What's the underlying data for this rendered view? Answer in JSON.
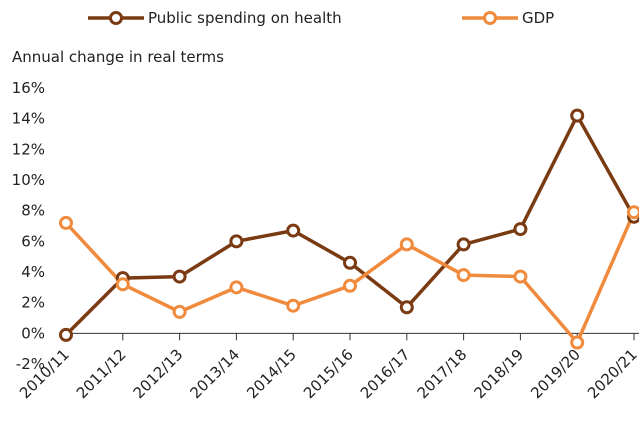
{
  "chart_data": {
    "type": "line",
    "y_axis_label": "Annual change in real terms",
    "categories": [
      "2010/11",
      "2011/12",
      "2012/13",
      "2013/14",
      "2014/15",
      "2015/16",
      "2016/17",
      "2017/18",
      "2018/19",
      "2019/20",
      "2020/21"
    ],
    "series": [
      {
        "name": "Public spending on health",
        "color": "#7a3a12",
        "values": [
          -0.1,
          3.6,
          3.7,
          6.0,
          6.7,
          4.6,
          1.7,
          5.8,
          6.8,
          14.2,
          7.6
        ]
      },
      {
        "name": "GDP",
        "color": "#f08a3c",
        "values": [
          7.2,
          3.2,
          1.4,
          3.0,
          1.8,
          3.1,
          5.8,
          3.8,
          3.7,
          -0.6,
          7.9
        ]
      }
    ],
    "ylim": [
      -2,
      16
    ],
    "yticks": [
      {
        "value": -2,
        "label": "-2%"
      },
      {
        "value": 0,
        "label": "0%"
      },
      {
        "value": 2,
        "label": "2%"
      },
      {
        "value": 4,
        "label": "4%"
      },
      {
        "value": 6,
        "label": "6%"
      },
      {
        "value": 8,
        "label": "8%"
      },
      {
        "value": 10,
        "label": "10%"
      },
      {
        "value": 12,
        "label": "12%"
      },
      {
        "value": 14,
        "label": "14%"
      },
      {
        "value": 16,
        "label": "16%"
      }
    ],
    "legend": "top"
  }
}
